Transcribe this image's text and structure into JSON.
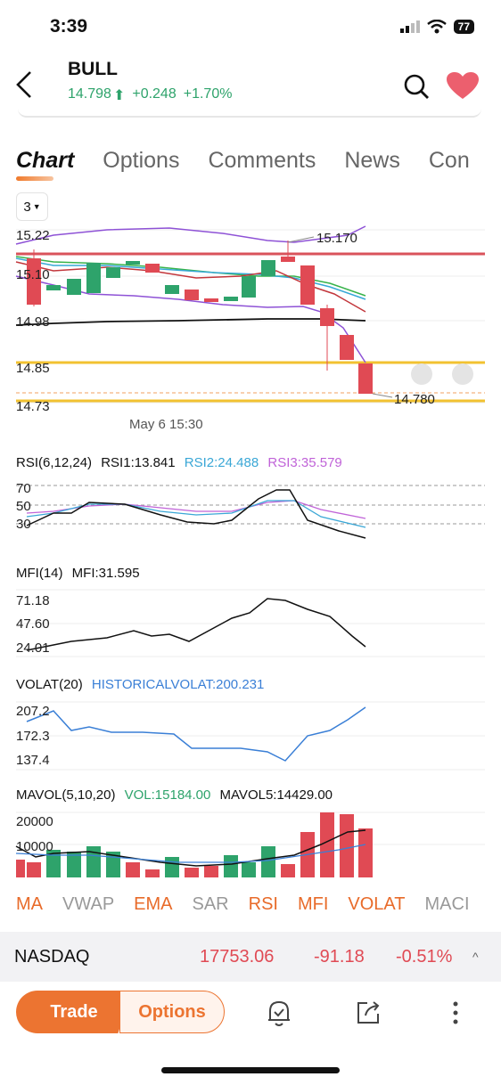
{
  "status": {
    "time": "3:39",
    "battery": "77"
  },
  "header": {
    "ticker": "BULL",
    "price": "14.798",
    "change": "+0.248",
    "change_pct": "+1.70%"
  },
  "tabs": [
    "Chart",
    "Options",
    "Comments",
    "News",
    "Con"
  ],
  "period": "3",
  "main_chart": {
    "y_labels": [
      "15.22",
      "15.10",
      "14.98",
      "14.85",
      "14.73"
    ],
    "high_label": "15.170",
    "low_label": "14.780",
    "time_label": "May 6 15:30"
  },
  "rsi": {
    "title": "RSI(6,12,24)",
    "rsi1": "RSI1:13.841",
    "rsi2": "RSI2:24.488",
    "rsi3": "RSI3:35.579",
    "levels": [
      "70",
      "50",
      "30"
    ]
  },
  "mfi": {
    "title": "MFI(14)",
    "value": "MFI:31.595",
    "levels": [
      "71.18",
      "47.60",
      "24.01"
    ]
  },
  "volat": {
    "title": "VOLAT(20)",
    "value": "HISTORICALVOLAT:200.231",
    "levels": [
      "207.2",
      "172.3",
      "137.4"
    ]
  },
  "mavol": {
    "title": "MAVOL(5,10,20)",
    "vol": "VOL:15184.00",
    "mavol5": "MAVOL5:14429.00",
    "levels": [
      "20000",
      "10000"
    ]
  },
  "indicators": [
    {
      "label": "MA",
      "active": true
    },
    {
      "label": "VWAP",
      "active": false
    },
    {
      "label": "EMA",
      "active": true
    },
    {
      "label": "SAR",
      "active": false
    },
    {
      "label": "RSI",
      "active": true
    },
    {
      "label": "MFI",
      "active": true
    },
    {
      "label": "VOLAT",
      "active": true
    },
    {
      "label": "MACI",
      "active": false
    }
  ],
  "ticker_bar": {
    "name": "NASDAQ",
    "value": "17753.06",
    "change": "-91.18",
    "change_pct": "-0.51%"
  },
  "bottom": {
    "trade": "Trade",
    "options": "Options"
  },
  "colors": {
    "up": "#2ea36b",
    "down": "#e04a54",
    "accent": "#ec7431"
  }
}
